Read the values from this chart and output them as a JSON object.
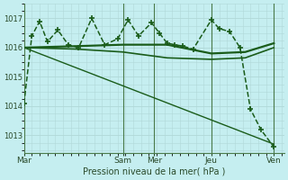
{
  "background_color": "#c5eef0",
  "grid_color": "#b0d8d8",
  "line_color": "#1a5c1a",
  "vline_color": "#4a7a4a",
  "xlabel": "Pression niveau de la mer( hPa )",
  "yticks": [
    1013,
    1014,
    1015,
    1016,
    1017
  ],
  "ylim": [
    1012.4,
    1017.5
  ],
  "xlim": [
    0,
    100
  ],
  "day_labels": [
    "Mar",
    "Sam",
    "Mer",
    "Jeu",
    "Ven"
  ],
  "day_positions": [
    0,
    38,
    50,
    72,
    96
  ],
  "series": [
    {
      "x": [
        0,
        3,
        6,
        9,
        13,
        17,
        21,
        26,
        31,
        36,
        40,
        44,
        49,
        52,
        55,
        58,
        61,
        65,
        72,
        75,
        79,
        83,
        87,
        91,
        96
      ],
      "y": [
        1014.1,
        1016.4,
        1016.9,
        1016.2,
        1016.6,
        1016.1,
        1016.0,
        1017.0,
        1016.1,
        1016.3,
        1016.95,
        1016.4,
        1016.85,
        1016.5,
        1016.15,
        1016.1,
        1016.05,
        1015.95,
        1016.95,
        1016.65,
        1016.55,
        1016.0,
        1013.9,
        1013.2,
        1012.6
      ],
      "marker": "+",
      "markersize": 4.5,
      "linewidth": 1.1,
      "linestyle": "--",
      "zorder": 4
    },
    {
      "x": [
        0,
        20,
        38,
        55,
        72,
        85,
        96
      ],
      "y": [
        1016.0,
        1016.05,
        1016.1,
        1016.1,
        1015.8,
        1015.85,
        1016.15
      ],
      "marker": null,
      "markersize": 0,
      "linewidth": 1.6,
      "linestyle": "-",
      "zorder": 3
    },
    {
      "x": [
        0,
        20,
        38,
        55,
        72,
        85,
        96
      ],
      "y": [
        1016.0,
        1015.95,
        1015.85,
        1015.65,
        1015.6,
        1015.65,
        1016.0
      ],
      "marker": null,
      "markersize": 0,
      "linewidth": 1.2,
      "linestyle": "-",
      "zorder": 3
    },
    {
      "x": [
        0,
        96
      ],
      "y": [
        1016.0,
        1012.7
      ],
      "marker": null,
      "markersize": 0,
      "linewidth": 1.0,
      "linestyle": "-",
      "zorder": 2
    }
  ]
}
